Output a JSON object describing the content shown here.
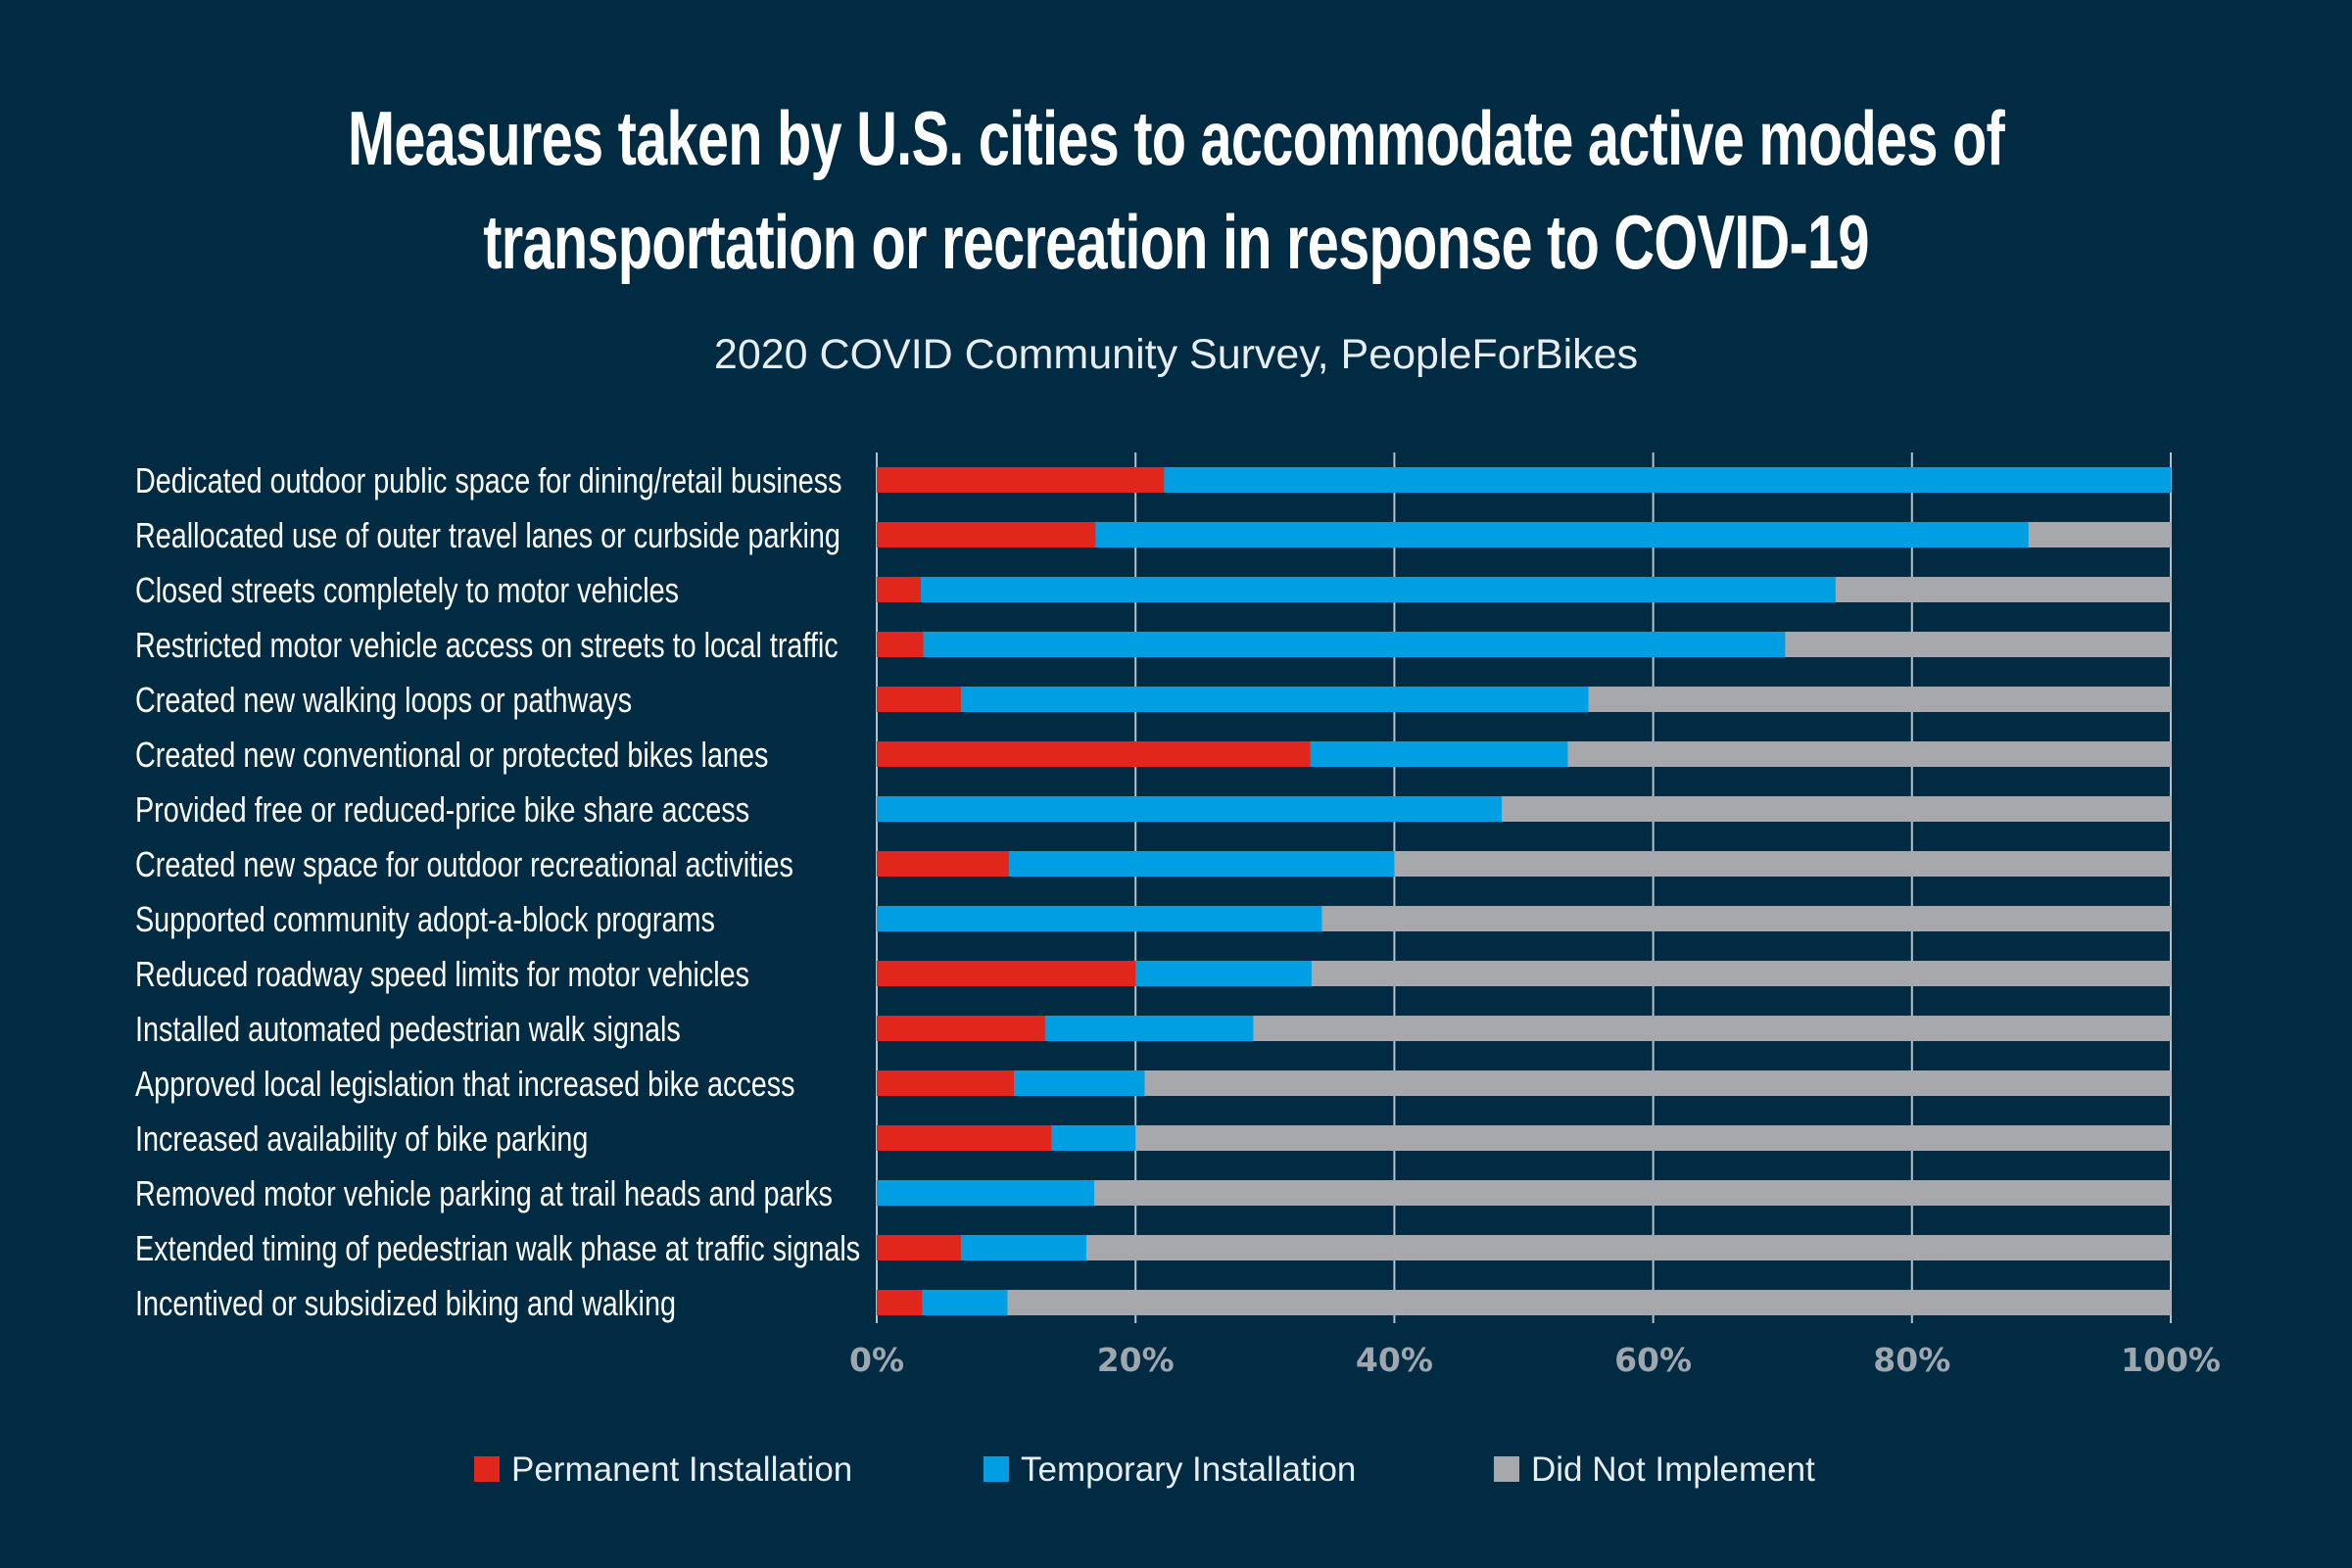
{
  "chart_data": {
    "type": "bar",
    "orientation": "horizontal",
    "stacked": true,
    "title": "Measures taken by U.S. cities to accommodate active modes of\ntransportation or recreation in response to COVID-19",
    "subtitle": "2020 COVID Community Survey, PeopleForBikes",
    "categories": [
      "Dedicated outdoor public space for dining/retail business",
      "Reallocated use of outer travel lanes or curbside parking",
      "Closed streets completely to motor vehicles",
      "Restricted motor vehicle access on streets to local traffic",
      "Created new walking loops or pathways",
      "Created new conventional or protected bikes lanes",
      "Provided free or reduced-price bike share access",
      "Created new space for outdoor recreational activities",
      "Supported community adopt-a-block programs",
      "Reduced roadway speed limits for motor vehicles",
      "Installed automated pedestrian walk signals",
      "Approved local legislation that increased bike access",
      "Increased availability of bike parking",
      "Removed motor vehicle parking at trail heads and parks",
      "Extended timing of pedestrian walk phase at traffic signals",
      "Incentived or subsidized biking and walking"
    ],
    "series": [
      {
        "name": "Permanent Installation",
        "color": "#e1261c",
        "values": [
          22.2,
          16.9,
          3.4,
          3.6,
          6.5,
          33.5,
          0,
          10.2,
          0,
          20.0,
          13.0,
          10.6,
          13.5,
          0,
          6.5,
          3.5
        ]
      },
      {
        "name": "Temporary Installation",
        "color": "#009fe3",
        "values": [
          77.8,
          72.1,
          70.7,
          66.6,
          48.5,
          19.9,
          48.3,
          29.8,
          34.4,
          13.6,
          16.1,
          10.1,
          6.5,
          16.8,
          9.7,
          6.6
        ]
      },
      {
        "name": "Did Not Implement",
        "color": "#a6a8ab",
        "values": [
          0,
          11.0,
          25.9,
          29.8,
          45.0,
          46.6,
          51.7,
          60.0,
          65.6,
          66.4,
          70.9,
          79.3,
          80.0,
          83.2,
          83.8,
          89.9
        ]
      }
    ],
    "xlim": [
      0,
      100
    ],
    "x_ticks": [
      "0%",
      "20%",
      "40%",
      "60%",
      "80%",
      "100%"
    ],
    "grid": true,
    "legend_position": "bottom"
  }
}
